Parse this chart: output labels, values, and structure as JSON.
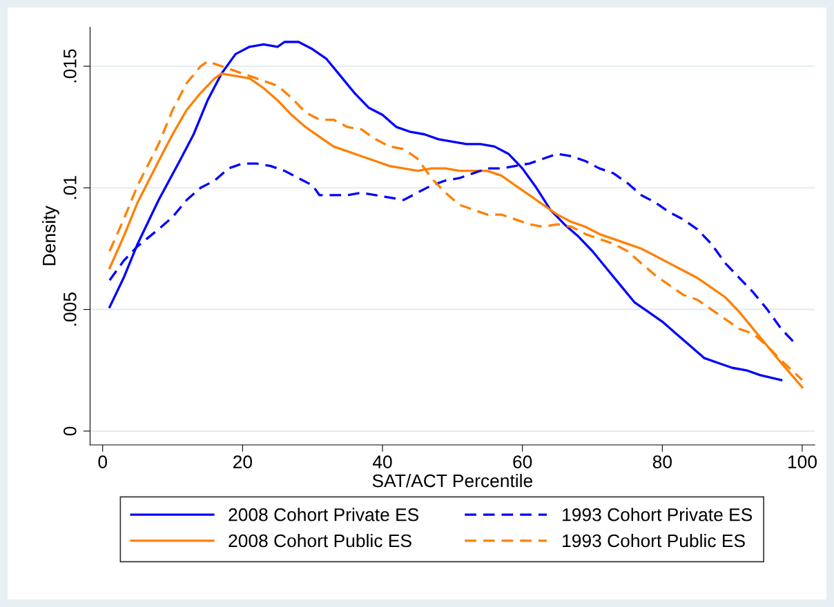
{
  "chart_data": {
    "type": "line",
    "xlabel": "SAT/ACT Percentile",
    "ylabel": "Density",
    "xlim": [
      -1.8,
      101.8
    ],
    "ylim": [
      -0.00057,
      0.0166
    ],
    "xticks": [
      0,
      20,
      40,
      60,
      80,
      100
    ],
    "yticks": [
      {
        "value": 0,
        "label": "0"
      },
      {
        "value": 0.005,
        "label": ".005"
      },
      {
        "value": 0.01,
        "label": ".01"
      },
      {
        "value": 0.015,
        "label": ".015"
      }
    ],
    "grid": "y",
    "legend": "bottom",
    "series": [
      {
        "name": "2008 Cohort Private ES",
        "color": "#0000ff",
        "line_style": "solid",
        "x": [
          1,
          3,
          5,
          8,
          11,
          13,
          15,
          17,
          19,
          21,
          23,
          25,
          26,
          28,
          30,
          32,
          34,
          36,
          38,
          40,
          42,
          44,
          46,
          48,
          50,
          52,
          54,
          56,
          58,
          60,
          62,
          64,
          66,
          68,
          70,
          72,
          74,
          76,
          78,
          80,
          82,
          84,
          86,
          88,
          90,
          92,
          94,
          97
        ],
        "values": [
          0.0051,
          0.0063,
          0.0077,
          0.0095,
          0.0111,
          0.0122,
          0.0136,
          0.0147,
          0.0155,
          0.0158,
          0.0159,
          0.0158,
          0.016,
          0.016,
          0.0157,
          0.0153,
          0.0146,
          0.0139,
          0.0133,
          0.013,
          0.0125,
          0.0123,
          0.0122,
          0.012,
          0.0119,
          0.0118,
          0.0118,
          0.0117,
          0.0114,
          0.0108,
          0.01,
          0.0091,
          0.0085,
          0.008,
          0.0074,
          0.0067,
          0.006,
          0.0053,
          0.0049,
          0.0045,
          0.004,
          0.0035,
          0.003,
          0.0028,
          0.0026,
          0.0025,
          0.0023,
          0.0021
        ]
      },
      {
        "name": "2008 Cohort Public ES",
        "color": "#ff8000",
        "line_style": "solid",
        "x": [
          1,
          3,
          5,
          8,
          10,
          12,
          14,
          16,
          17,
          19,
          21,
          23,
          25,
          27,
          29,
          31,
          33,
          35,
          37,
          39,
          41,
          43,
          45,
          47,
          49,
          51,
          53,
          55,
          57,
          59,
          61,
          63,
          65,
          67,
          69,
          71,
          73,
          75,
          77,
          79,
          81,
          83,
          85,
          87,
          89,
          91,
          93,
          95,
          97,
          100
        ],
        "values": [
          0.0067,
          0.008,
          0.0094,
          0.0111,
          0.0122,
          0.0132,
          0.0139,
          0.0145,
          0.0147,
          0.0146,
          0.0145,
          0.0141,
          0.0136,
          0.013,
          0.0125,
          0.0121,
          0.0117,
          0.0115,
          0.0113,
          0.0111,
          0.0109,
          0.0108,
          0.0107,
          0.0108,
          0.0108,
          0.0107,
          0.0107,
          0.0107,
          0.0105,
          0.0101,
          0.0097,
          0.0093,
          0.0089,
          0.0086,
          0.0084,
          0.0081,
          0.0079,
          0.0077,
          0.0075,
          0.0072,
          0.0069,
          0.0066,
          0.0063,
          0.0059,
          0.0055,
          0.0049,
          0.0042,
          0.0035,
          0.0028,
          0.0018
        ]
      },
      {
        "name": "1993 Cohort Private ES",
        "color": "#0000ff",
        "line_style": "dashed",
        "x": [
          1,
          3,
          5,
          8,
          10,
          12,
          14,
          16,
          18,
          20,
          22,
          24,
          26,
          28,
          30,
          31,
          33,
          35,
          37,
          39,
          41,
          43,
          45,
          47,
          49,
          51,
          53,
          55,
          57,
          59,
          61,
          63,
          65,
          67,
          69,
          71,
          73,
          75,
          77,
          79,
          81,
          83,
          85,
          87,
          89,
          91,
          93,
          95,
          97,
          99
        ],
        "values": [
          0.0062,
          0.007,
          0.0076,
          0.0083,
          0.0088,
          0.0095,
          0.01,
          0.0103,
          0.0108,
          0.011,
          0.011,
          0.0109,
          0.0107,
          0.0104,
          0.0101,
          0.0097,
          0.0097,
          0.0097,
          0.0098,
          0.0097,
          0.0096,
          0.0095,
          0.0098,
          0.0101,
          0.0103,
          0.0104,
          0.0106,
          0.0108,
          0.0108,
          0.0109,
          0.011,
          0.0112,
          0.0114,
          0.0113,
          0.0111,
          0.0108,
          0.0106,
          0.0102,
          0.0097,
          0.0094,
          0.009,
          0.0087,
          0.0083,
          0.0077,
          0.0069,
          0.0063,
          0.0057,
          0.005,
          0.0042,
          0.0036
        ]
      },
      {
        "name": "1993 Cohort Public ES",
        "color": "#ff8000",
        "line_style": "dashed",
        "x": [
          1,
          3,
          5,
          8,
          10,
          12,
          14,
          15,
          17,
          19,
          21,
          23,
          25,
          27,
          29,
          31,
          33,
          35,
          37,
          39,
          41,
          43,
          45,
          47,
          49,
          51,
          53,
          55,
          57,
          59,
          61,
          63,
          65,
          67,
          69,
          71,
          73,
          75,
          77,
          79,
          81,
          83,
          85,
          87,
          89,
          91,
          93,
          95,
          97,
          100
        ],
        "values": [
          0.0074,
          0.0087,
          0.0101,
          0.0118,
          0.0132,
          0.0143,
          0.015,
          0.0152,
          0.015,
          0.0148,
          0.0146,
          0.0144,
          0.0142,
          0.0137,
          0.0131,
          0.0128,
          0.0128,
          0.0125,
          0.0124,
          0.012,
          0.0117,
          0.0116,
          0.0112,
          0.0104,
          0.0098,
          0.0093,
          0.0091,
          0.0089,
          0.0089,
          0.0087,
          0.0085,
          0.0084,
          0.0085,
          0.0084,
          0.0081,
          0.0079,
          0.0077,
          0.0074,
          0.0069,
          0.0064,
          0.006,
          0.0056,
          0.0054,
          0.005,
          0.0046,
          0.0042,
          0.004,
          0.0035,
          0.0029,
          0.0021
        ]
      }
    ]
  }
}
